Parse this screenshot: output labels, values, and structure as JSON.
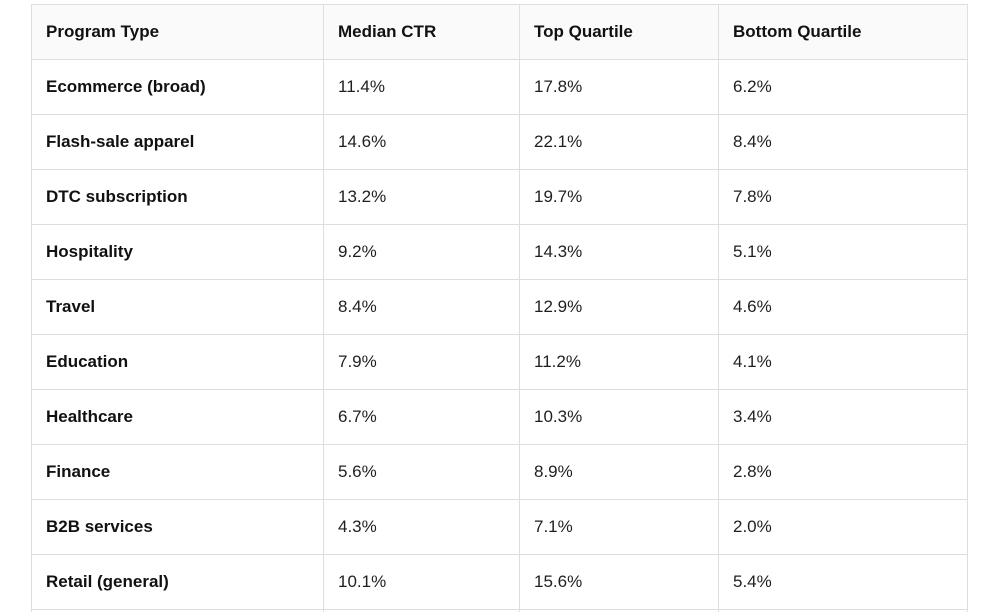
{
  "table": {
    "columns": [
      "Program Type",
      "Median CTR",
      "Top Quartile",
      "Bottom Quartile"
    ],
    "rows": [
      {
        "program": "Ecommerce (broad)",
        "median": "11.4%",
        "top": "17.8%",
        "bottom": "6.2%"
      },
      {
        "program": "Flash-sale apparel",
        "median": "14.6%",
        "top": "22.1%",
        "bottom": "8.4%"
      },
      {
        "program": "DTC subscription",
        "median": "13.2%",
        "top": "19.7%",
        "bottom": "7.8%"
      },
      {
        "program": "Hospitality",
        "median": "9.2%",
        "top": "14.3%",
        "bottom": "5.1%"
      },
      {
        "program": "Travel",
        "median": "8.4%",
        "top": "12.9%",
        "bottom": "4.6%"
      },
      {
        "program": "Education",
        "median": "7.9%",
        "top": "11.2%",
        "bottom": "4.1%"
      },
      {
        "program": "Healthcare",
        "median": "6.7%",
        "top": "10.3%",
        "bottom": "3.4%"
      },
      {
        "program": "Finance",
        "median": "5.6%",
        "top": "8.9%",
        "bottom": "2.8%"
      },
      {
        "program": "B2B services",
        "median": "4.3%",
        "top": "7.1%",
        "bottom": "2.0%"
      },
      {
        "program": "Retail (general)",
        "median": "10.1%",
        "top": "15.6%",
        "bottom": "5.4%"
      }
    ]
  }
}
